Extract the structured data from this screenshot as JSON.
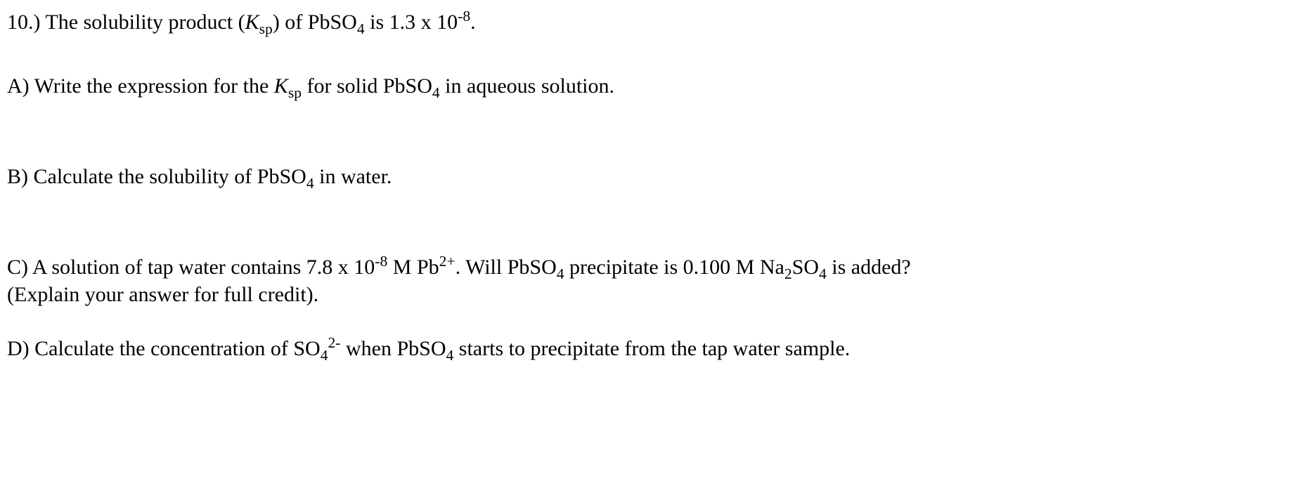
{
  "header": {
    "number": "10.)",
    "text_before_ksp": " The solubility product (",
    "ksp_k": "K",
    "ksp_sp": "sp",
    "text_after_ksp": ") of PbSO",
    "sub4_1": "4",
    "text_middle": " is 1.3 x 10",
    "sup_neg8": "-8",
    "period": "."
  },
  "partA": {
    "label": "A) Write the expression for the ",
    "ksp_k": "K",
    "ksp_sp": "sp",
    "text_after": " for solid PbSO",
    "sub4": "4",
    "text_end": " in aqueous solution."
  },
  "partB": {
    "label": "B) Calculate the solubility of PbSO",
    "sub4": "4",
    "text_end": " in water."
  },
  "partC": {
    "line1_start": "C) A solution of tap water contains 7.8 x 10",
    "sup_neg8": "-8",
    "text_m_pb": " M Pb",
    "sup_2plus": "2+",
    "text_will": ". Will PbSO",
    "sub4_1": "4",
    "text_precip": " precipitate is 0.100 M Na",
    "sub2": "2",
    "text_so": "SO",
    "sub4_2": "4",
    "text_end1": " is added?",
    "line2": "(Explain your answer for full credit)."
  },
  "partD": {
    "label": "D) Calculate the concentration of SO",
    "sub4": "4",
    "sup_2minus": "2-",
    "text_when": " when PbSO",
    "sub4_2": "4",
    "text_end": " starts to precipitate from the tap water sample."
  }
}
